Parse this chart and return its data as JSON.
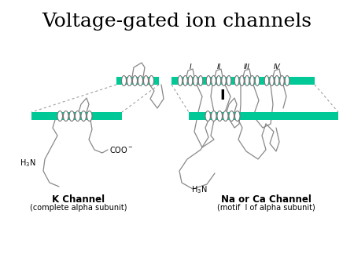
{
  "title": "Voltage-gated ion channels",
  "title_fontsize": 18,
  "bg_color": "#ffffff",
  "membrane_color": "#00c896",
  "line_color": "#888888",
  "text_color": "#000000",
  "k_channel_label": "K Channel",
  "k_channel_sub": "(complete alpha subunit)",
  "na_channel_label": "Na or Ca Channel",
  "na_channel_sub": "(motif  I of alpha subunit)",
  "motif_label": "I",
  "roman_labels": [
    "I",
    "II",
    "III",
    "IV"
  ]
}
